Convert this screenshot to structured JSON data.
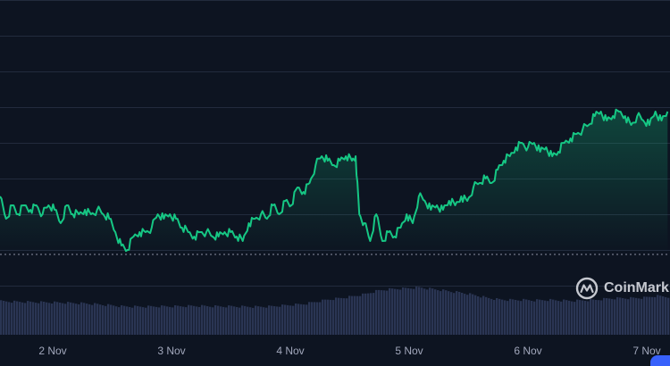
{
  "watermark": {
    "text": "CoinMark",
    "icon": "coinmarketcap-logo-icon"
  },
  "colors": {
    "background": "#0d1421",
    "line": "#16c784",
    "grid": "#222b3d",
    "volume": "#2a3553",
    "baseline": "#8a90a3"
  },
  "chart_data": {
    "type": "line",
    "x_ticks": [
      "2 Nov",
      "3 Nov",
      "4 Nov",
      "5 Nov",
      "6 Nov",
      "7 Nov"
    ],
    "baseline_value": 0.285,
    "price_series": [
      {
        "x": 1.7,
        "y": 0.35
      },
      {
        "x": 1.75,
        "y": 0.325
      },
      {
        "x": 1.8,
        "y": 0.34
      },
      {
        "x": 1.85,
        "y": 0.33
      },
      {
        "x": 1.9,
        "y": 0.34
      },
      {
        "x": 1.95,
        "y": 0.335
      },
      {
        "x": 2.0,
        "y": 0.34
      },
      {
        "x": 2.05,
        "y": 0.33
      },
      {
        "x": 2.1,
        "y": 0.34
      },
      {
        "x": 2.15,
        "y": 0.335
      },
      {
        "x": 2.2,
        "y": 0.32
      },
      {
        "x": 2.25,
        "y": 0.34
      },
      {
        "x": 2.3,
        "y": 0.33
      },
      {
        "x": 2.35,
        "y": 0.33
      },
      {
        "x": 2.4,
        "y": 0.335
      },
      {
        "x": 2.45,
        "y": 0.33
      },
      {
        "x": 2.5,
        "y": 0.335
      },
      {
        "x": 2.55,
        "y": 0.33
      },
      {
        "x": 2.6,
        "y": 0.325
      },
      {
        "x": 2.65,
        "y": 0.31
      },
      {
        "x": 2.7,
        "y": 0.295
      },
      {
        "x": 2.75,
        "y": 0.29
      },
      {
        "x": 2.8,
        "y": 0.305
      },
      {
        "x": 2.85,
        "y": 0.31
      },
      {
        "x": 2.9,
        "y": 0.31
      },
      {
        "x": 2.95,
        "y": 0.315
      },
      {
        "x": 3.0,
        "y": 0.33
      },
      {
        "x": 3.05,
        "y": 0.325
      },
      {
        "x": 3.1,
        "y": 0.33
      },
      {
        "x": 3.15,
        "y": 0.325
      },
      {
        "x": 3.2,
        "y": 0.315
      },
      {
        "x": 3.25,
        "y": 0.31
      },
      {
        "x": 3.3,
        "y": 0.305
      },
      {
        "x": 3.35,
        "y": 0.31
      },
      {
        "x": 3.4,
        "y": 0.31
      },
      {
        "x": 3.45,
        "y": 0.305
      },
      {
        "x": 3.5,
        "y": 0.305
      },
      {
        "x": 3.55,
        "y": 0.31
      },
      {
        "x": 3.6,
        "y": 0.31
      },
      {
        "x": 3.65,
        "y": 0.305
      },
      {
        "x": 3.7,
        "y": 0.3
      },
      {
        "x": 3.75,
        "y": 0.32
      },
      {
        "x": 3.8,
        "y": 0.325
      },
      {
        "x": 3.85,
        "y": 0.33
      },
      {
        "x": 3.9,
        "y": 0.325
      },
      {
        "x": 3.95,
        "y": 0.34
      },
      {
        "x": 4.0,
        "y": 0.33
      },
      {
        "x": 4.05,
        "y": 0.345
      },
      {
        "x": 4.1,
        "y": 0.34
      },
      {
        "x": 4.15,
        "y": 0.36
      },
      {
        "x": 4.2,
        "y": 0.355
      },
      {
        "x": 4.25,
        "y": 0.365
      },
      {
        "x": 4.3,
        "y": 0.385
      },
      {
        "x": 4.35,
        "y": 0.395
      },
      {
        "x": 4.4,
        "y": 0.39
      },
      {
        "x": 4.45,
        "y": 0.385
      },
      {
        "x": 4.5,
        "y": 0.39
      },
      {
        "x": 4.55,
        "y": 0.395
      },
      {
        "x": 4.6,
        "y": 0.39
      },
      {
        "x": 4.63,
        "y": 0.395
      },
      {
        "x": 4.66,
        "y": 0.33
      },
      {
        "x": 4.7,
        "y": 0.32
      },
      {
        "x": 4.75,
        "y": 0.3
      },
      {
        "x": 4.8,
        "y": 0.33
      },
      {
        "x": 4.85,
        "y": 0.3
      },
      {
        "x": 4.9,
        "y": 0.31
      },
      {
        "x": 4.95,
        "y": 0.305
      },
      {
        "x": 5.0,
        "y": 0.315
      },
      {
        "x": 5.05,
        "y": 0.33
      },
      {
        "x": 5.1,
        "y": 0.32
      },
      {
        "x": 5.15,
        "y": 0.35
      },
      {
        "x": 5.2,
        "y": 0.345
      },
      {
        "x": 5.25,
        "y": 0.335
      },
      {
        "x": 5.3,
        "y": 0.34
      },
      {
        "x": 5.35,
        "y": 0.335
      },
      {
        "x": 5.4,
        "y": 0.345
      },
      {
        "x": 5.45,
        "y": 0.34
      },
      {
        "x": 5.5,
        "y": 0.35
      },
      {
        "x": 5.55,
        "y": 0.345
      },
      {
        "x": 5.6,
        "y": 0.36
      },
      {
        "x": 5.65,
        "y": 0.365
      },
      {
        "x": 5.7,
        "y": 0.37
      },
      {
        "x": 5.75,
        "y": 0.365
      },
      {
        "x": 5.8,
        "y": 0.38
      },
      {
        "x": 5.85,
        "y": 0.39
      },
      {
        "x": 5.9,
        "y": 0.395
      },
      {
        "x": 5.95,
        "y": 0.405
      },
      {
        "x": 6.0,
        "y": 0.41
      },
      {
        "x": 6.05,
        "y": 0.405
      },
      {
        "x": 6.1,
        "y": 0.41
      },
      {
        "x": 6.15,
        "y": 0.4
      },
      {
        "x": 6.2,
        "y": 0.405
      },
      {
        "x": 6.25,
        "y": 0.395
      },
      {
        "x": 6.3,
        "y": 0.4
      },
      {
        "x": 6.35,
        "y": 0.41
      },
      {
        "x": 6.4,
        "y": 0.415
      },
      {
        "x": 6.45,
        "y": 0.42
      },
      {
        "x": 6.5,
        "y": 0.425
      },
      {
        "x": 6.55,
        "y": 0.43
      },
      {
        "x": 6.6,
        "y": 0.44
      },
      {
        "x": 6.65,
        "y": 0.445
      },
      {
        "x": 6.7,
        "y": 0.435
      },
      {
        "x": 6.75,
        "y": 0.44
      },
      {
        "x": 6.8,
        "y": 0.445
      },
      {
        "x": 6.85,
        "y": 0.44
      },
      {
        "x": 6.9,
        "y": 0.43
      },
      {
        "x": 6.95,
        "y": 0.44
      },
      {
        "x": 7.0,
        "y": 0.435
      },
      {
        "x": 7.05,
        "y": 0.43
      },
      {
        "x": 7.1,
        "y": 0.445
      },
      {
        "x": 7.15,
        "y": 0.435
      },
      {
        "x": 7.2,
        "y": 0.445
      }
    ],
    "volume_series": [
      {
        "x": 1.7,
        "v": 0.38
      },
      {
        "x": 1.8,
        "v": 0.36
      },
      {
        "x": 1.9,
        "v": 0.35
      },
      {
        "x": 2.0,
        "v": 0.34
      },
      {
        "x": 2.1,
        "v": 0.33
      },
      {
        "x": 2.2,
        "v": 0.32
      },
      {
        "x": 2.3,
        "v": 0.3
      },
      {
        "x": 2.4,
        "v": 0.28
      },
      {
        "x": 2.5,
        "v": 0.24
      },
      {
        "x": 2.6,
        "v": 0.2
      },
      {
        "x": 2.7,
        "v": 0.15
      },
      {
        "x": 2.8,
        "v": 0.14
      },
      {
        "x": 2.9,
        "v": 0.14
      },
      {
        "x": 3.0,
        "v": 0.15
      },
      {
        "x": 3.1,
        "v": 0.15
      },
      {
        "x": 3.2,
        "v": 0.16
      },
      {
        "x": 3.3,
        "v": 0.17
      },
      {
        "x": 3.4,
        "v": 0.16
      },
      {
        "x": 3.5,
        "v": 0.15
      },
      {
        "x": 3.6,
        "v": 0.15
      },
      {
        "x": 3.7,
        "v": 0.14
      },
      {
        "x": 3.8,
        "v": 0.13
      },
      {
        "x": 3.9,
        "v": 0.14
      },
      {
        "x": 4.0,
        "v": 0.18
      },
      {
        "x": 4.1,
        "v": 0.22
      },
      {
        "x": 4.2,
        "v": 0.26
      },
      {
        "x": 4.3,
        "v": 0.36
      },
      {
        "x": 4.4,
        "v": 0.46
      },
      {
        "x": 4.5,
        "v": 0.52
      },
      {
        "x": 4.6,
        "v": 0.6
      },
      {
        "x": 4.7,
        "v": 0.7
      },
      {
        "x": 4.8,
        "v": 0.85
      },
      {
        "x": 4.9,
        "v": 0.92
      },
      {
        "x": 5.0,
        "v": 0.95
      },
      {
        "x": 5.1,
        "v": 0.98
      },
      {
        "x": 5.15,
        "v": 1.0
      },
      {
        "x": 5.2,
        "v": 0.96
      },
      {
        "x": 5.3,
        "v": 0.9
      },
      {
        "x": 5.4,
        "v": 0.82
      },
      {
        "x": 5.5,
        "v": 0.76
      },
      {
        "x": 5.6,
        "v": 0.66
      },
      {
        "x": 5.7,
        "v": 0.54
      },
      {
        "x": 5.8,
        "v": 0.46
      },
      {
        "x": 5.9,
        "v": 0.44
      },
      {
        "x": 6.0,
        "v": 0.44
      },
      {
        "x": 6.1,
        "v": 0.42
      },
      {
        "x": 6.2,
        "v": 0.44
      },
      {
        "x": 6.3,
        "v": 0.42
      },
      {
        "x": 6.4,
        "v": 0.4
      },
      {
        "x": 6.5,
        "v": 0.42
      },
      {
        "x": 6.6,
        "v": 0.44
      },
      {
        "x": 6.7,
        "v": 0.5
      },
      {
        "x": 6.8,
        "v": 0.52
      },
      {
        "x": 6.9,
        "v": 0.52
      },
      {
        "x": 7.0,
        "v": 0.54
      },
      {
        "x": 7.1,
        "v": 0.62
      },
      {
        "x": 7.2,
        "v": 0.58
      }
    ]
  }
}
